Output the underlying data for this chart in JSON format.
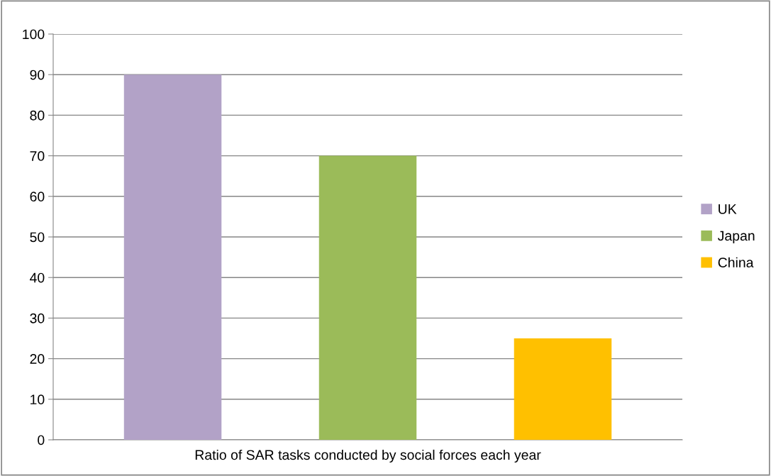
{
  "chart_data": {
    "type": "bar",
    "categories": [
      "Ratio of SAR tasks conducted by social forces each year"
    ],
    "series": [
      {
        "name": "UK",
        "color": "#b2a2c7",
        "values": [
          90
        ]
      },
      {
        "name": "Japan",
        "color": "#9bbb59",
        "values": [
          70
        ]
      },
      {
        "name": "China",
        "color": "#ffc000",
        "values": [
          25
        ]
      }
    ],
    "ylim": [
      0,
      100
    ],
    "yticks": [
      0,
      10,
      20,
      30,
      40,
      50,
      60,
      70,
      80,
      90,
      100
    ],
    "grid": "y",
    "legend": "right"
  }
}
